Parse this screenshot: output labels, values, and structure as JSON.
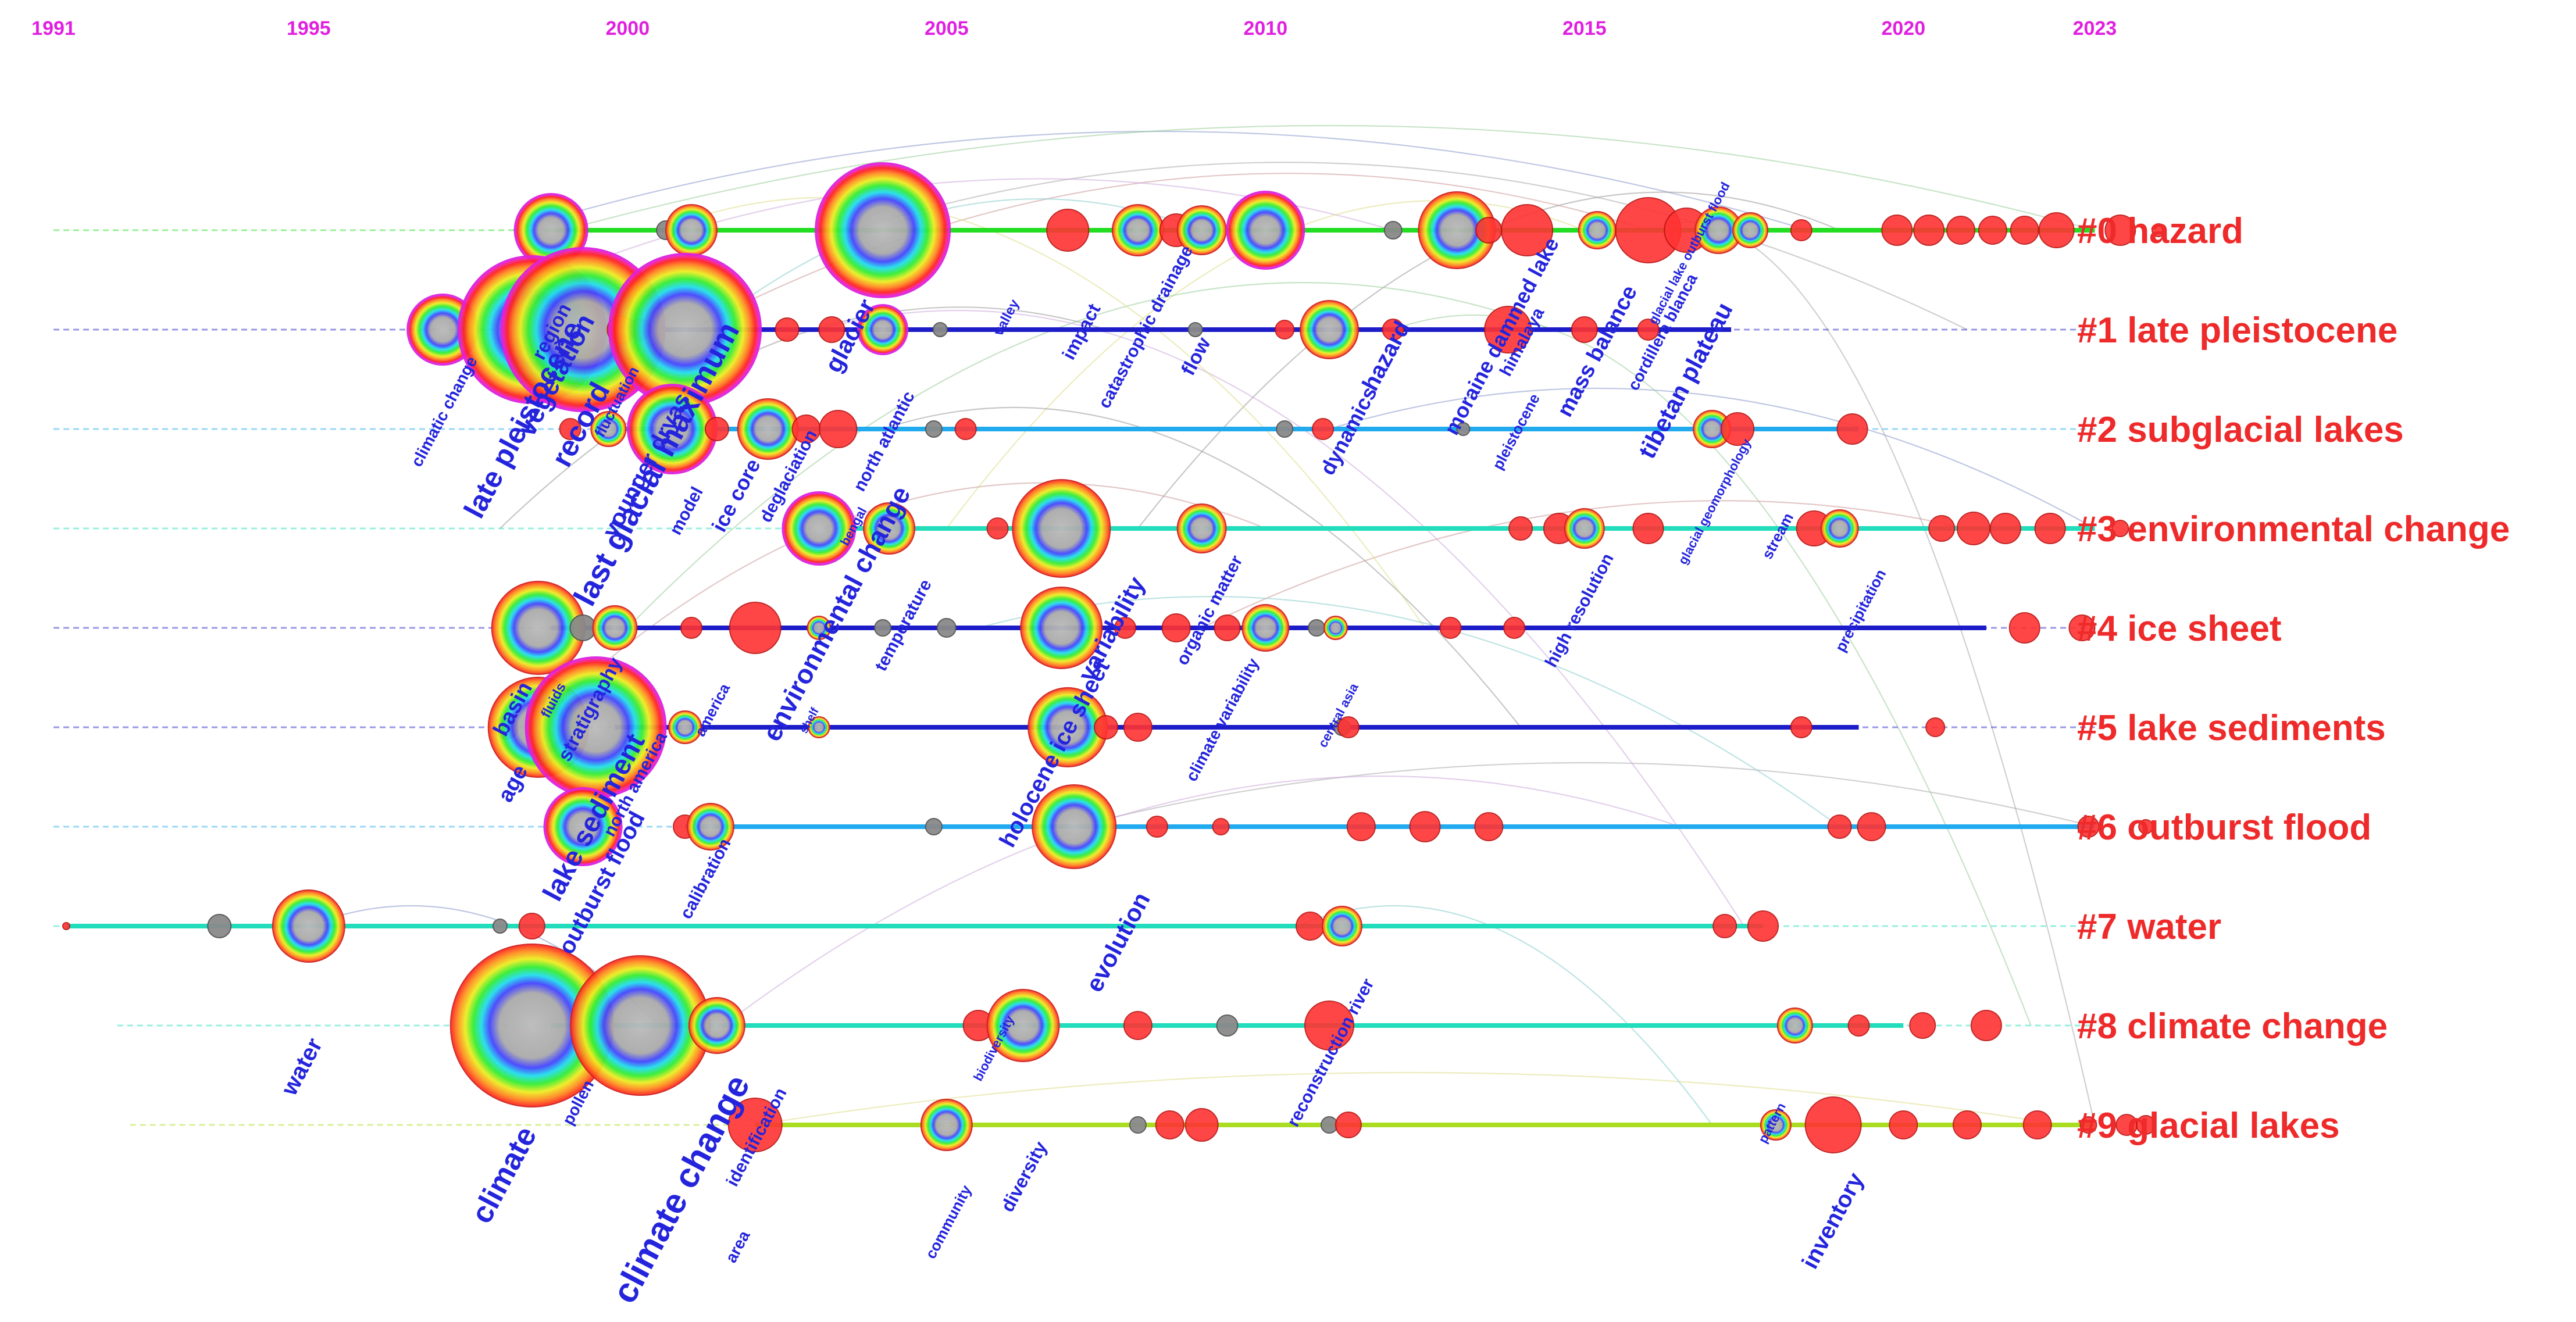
{
  "years": [
    "1991",
    "1995",
    "2000",
    "2005",
    "2010",
    "2015",
    "2020",
    "2023"
  ],
  "clusters": [
    {
      "id": "#0",
      "name": "hazard",
      "label": "#0 hazard",
      "line_color": "#22dd22"
    },
    {
      "id": "#1",
      "name": "late pleistocene",
      "label": "#1 late pleistocene",
      "line_color": "#1c1cc8"
    },
    {
      "id": "#2",
      "name": "subglacial lakes",
      "label": "#2 subglacial lakes",
      "line_color": "#22aaee"
    },
    {
      "id": "#3",
      "name": "environmental change",
      "label": "#3 environmental change",
      "line_color": "#22ddbb"
    },
    {
      "id": "#4",
      "name": "ice sheet",
      "label": "#4 ice sheet",
      "line_color": "#1c1cc8"
    },
    {
      "id": "#5",
      "name": "lake sediments",
      "label": "#5 lake sediments",
      "line_color": "#1c1cc8"
    },
    {
      "id": "#6",
      "name": "outburst flood",
      "label": "#6 outburst flood",
      "line_color": "#22aaee"
    },
    {
      "id": "#7",
      "name": "water",
      "label": "#7 water",
      "line_color": "#22ddbb"
    },
    {
      "id": "#8",
      "name": "climate change",
      "label": "#8 climate change",
      "line_color": "#22ddbb"
    },
    {
      "id": "#9",
      "name": "glacial lakes",
      "label": "#9 glacial lakes",
      "line_color": "#aadd22"
    }
  ],
  "keywords": [
    {
      "text": "climatic change",
      "year": 1997.2,
      "cluster": 1.85,
      "size": 28
    },
    {
      "text": "late pleistocene",
      "year": 1998.5,
      "cluster": 1.95,
      "size": 50
    },
    {
      "text": "region",
      "year": 1998.9,
      "cluster": 1.05,
      "size": 34
    },
    {
      "text": "vegetation",
      "year": 1999.0,
      "cluster": 1.5,
      "size": 46
    },
    {
      "text": "record",
      "year": 1999.4,
      "cluster": 2.0,
      "size": 50
    },
    {
      "text": "fluctuation",
      "year": 1999.9,
      "cluster": 1.75,
      "size": 26
    },
    {
      "text": "last glacial maximum",
      "year": 2000.6,
      "cluster": 2.4,
      "size": 54
    },
    {
      "text": "younger dryas",
      "year": 2000.4,
      "cluster": 2.4,
      "size": 40
    },
    {
      "text": "model",
      "year": 2001.0,
      "cluster": 2.85,
      "size": 30
    },
    {
      "text": "ice core",
      "year": 2001.8,
      "cluster": 2.7,
      "size": 36
    },
    {
      "text": "deglaciation",
      "year": 2002.6,
      "cluster": 2.5,
      "size": 30
    },
    {
      "text": "glacier",
      "year": 2003.6,
      "cluster": 1.1,
      "size": 42
    },
    {
      "text": "north atlantic",
      "year": 2004.1,
      "cluster": 2.15,
      "size": 30
    },
    {
      "text": "bengal",
      "year": 2003.6,
      "cluster": 3.0,
      "size": 22
    },
    {
      "text": "environmental change",
      "year": 2003.4,
      "cluster": 3.9,
      "size": 46
    },
    {
      "text": "temperature",
      "year": 2004.4,
      "cluster": 4.0,
      "size": 30
    },
    {
      "text": "valley",
      "year": 2006.0,
      "cluster": 0.9,
      "size": 24
    },
    {
      "text": "impact",
      "year": 2007.2,
      "cluster": 1.05,
      "size": 32
    },
    {
      "text": "catastrophic drainage",
      "year": 2008.2,
      "cluster": 1.0,
      "size": 30
    },
    {
      "text": "flow",
      "year": 2009.0,
      "cluster": 1.3,
      "size": 34
    },
    {
      "text": "variability",
      "year": 2007.7,
      "cluster": 4.05,
      "size": 42
    },
    {
      "text": "organic matter",
      "year": 2009.2,
      "cluster": 3.85,
      "size": 30
    },
    {
      "text": "climate variability",
      "year": 2009.4,
      "cluster": 4.95,
      "size": 28
    },
    {
      "text": "central asia",
      "year": 2011.2,
      "cluster": 4.9,
      "size": 22
    },
    {
      "text": "holocene ice sheet",
      "year": 2006.8,
      "cluster": 5.3,
      "size": 40
    },
    {
      "text": "dynamics",
      "year": 2011.4,
      "cluster": 2.05,
      "size": 36
    },
    {
      "text": "hazard",
      "year": 2012.0,
      "cluster": 1.3,
      "size": 40
    },
    {
      "text": "moraine dammed lake",
      "year": 2013.8,
      "cluster": 1.1,
      "size": 36
    },
    {
      "text": "himalaya",
      "year": 2014.1,
      "cluster": 1.15,
      "size": 30
    },
    {
      "text": "pleistocene",
      "year": 2014.0,
      "cluster": 2.05,
      "size": 26
    },
    {
      "text": "mass balance",
      "year": 2015.3,
      "cluster": 1.25,
      "size": 38
    },
    {
      "text": "glacial lake outburst flood",
      "year": 2016.7,
      "cluster": 0.25,
      "size": 22
    },
    {
      "text": "cordillera blanca",
      "year": 2016.3,
      "cluster": 1.05,
      "size": 28
    },
    {
      "text": "tibetan plateau",
      "year": 2016.7,
      "cluster": 1.55,
      "size": 42
    },
    {
      "text": "glacial geomorphology",
      "year": 2017.1,
      "cluster": 2.75,
      "size": 22
    },
    {
      "text": "stream",
      "year": 2018.1,
      "cluster": 3.1,
      "size": 26
    },
    {
      "text": "high resolution",
      "year": 2015.0,
      "cluster": 3.85,
      "size": 30
    },
    {
      "text": "precipitation",
      "year": 2019.4,
      "cluster": 3.85,
      "size": 26
    },
    {
      "text": "basin",
      "year": 1998.3,
      "cluster": 4.85,
      "size": 38
    },
    {
      "text": "fluids",
      "year": 1998.9,
      "cluster": 4.75,
      "size": 24
    },
    {
      "text": "stratigraphy",
      "year": 1999.5,
      "cluster": 4.85,
      "size": 34
    },
    {
      "text": "america",
      "year": 2001.4,
      "cluster": 4.85,
      "size": 26
    },
    {
      "text": "shelf",
      "year": 2002.9,
      "cluster": 4.95,
      "size": 20
    },
    {
      "text": "age",
      "year": 1998.3,
      "cluster": 5.6,
      "size": 38
    },
    {
      "text": "north america",
      "year": 2000.2,
      "cluster": 5.6,
      "size": 30
    },
    {
      "text": "lake sediment",
      "year": 1999.6,
      "cluster": 5.95,
      "size": 48
    },
    {
      "text": "outburst flood",
      "year": 1999.7,
      "cluster": 6.6,
      "size": 40
    },
    {
      "text": "calibration",
      "year": 2001.3,
      "cluster": 6.55,
      "size": 30
    },
    {
      "text": "evolution",
      "year": 2007.8,
      "cluster": 7.2,
      "size": 42
    },
    {
      "text": "reconstruction river",
      "year": 2011.1,
      "cluster": 8.3,
      "size": 30
    },
    {
      "text": "biodiversity",
      "year": 2005.8,
      "cluster": 8.25,
      "size": 22
    },
    {
      "text": "water",
      "year": 1995.0,
      "cluster": 8.45,
      "size": 40
    },
    {
      "text": "pollen",
      "year": 1999.3,
      "cluster": 8.8,
      "size": 28
    },
    {
      "text": "climate",
      "year": 1998.2,
      "cluster": 9.55,
      "size": 52
    },
    {
      "text": "climate change",
      "year": 2001.0,
      "cluster": 9.7,
      "size": 60
    },
    {
      "text": "identification",
      "year": 2002.1,
      "cluster": 9.15,
      "size": 30
    },
    {
      "text": "area",
      "year": 2001.8,
      "cluster": 10.25,
      "size": 28
    },
    {
      "text": "community",
      "year": 2005.1,
      "cluster": 10.0,
      "size": 26
    },
    {
      "text": "diversity",
      "year": 2006.3,
      "cluster": 9.55,
      "size": 32
    },
    {
      "text": "pattern",
      "year": 2018.0,
      "cluster": 9.0,
      "size": 22
    },
    {
      "text": "inventory",
      "year": 2019.0,
      "cluster": 10.0,
      "size": 40
    }
  ]
}
